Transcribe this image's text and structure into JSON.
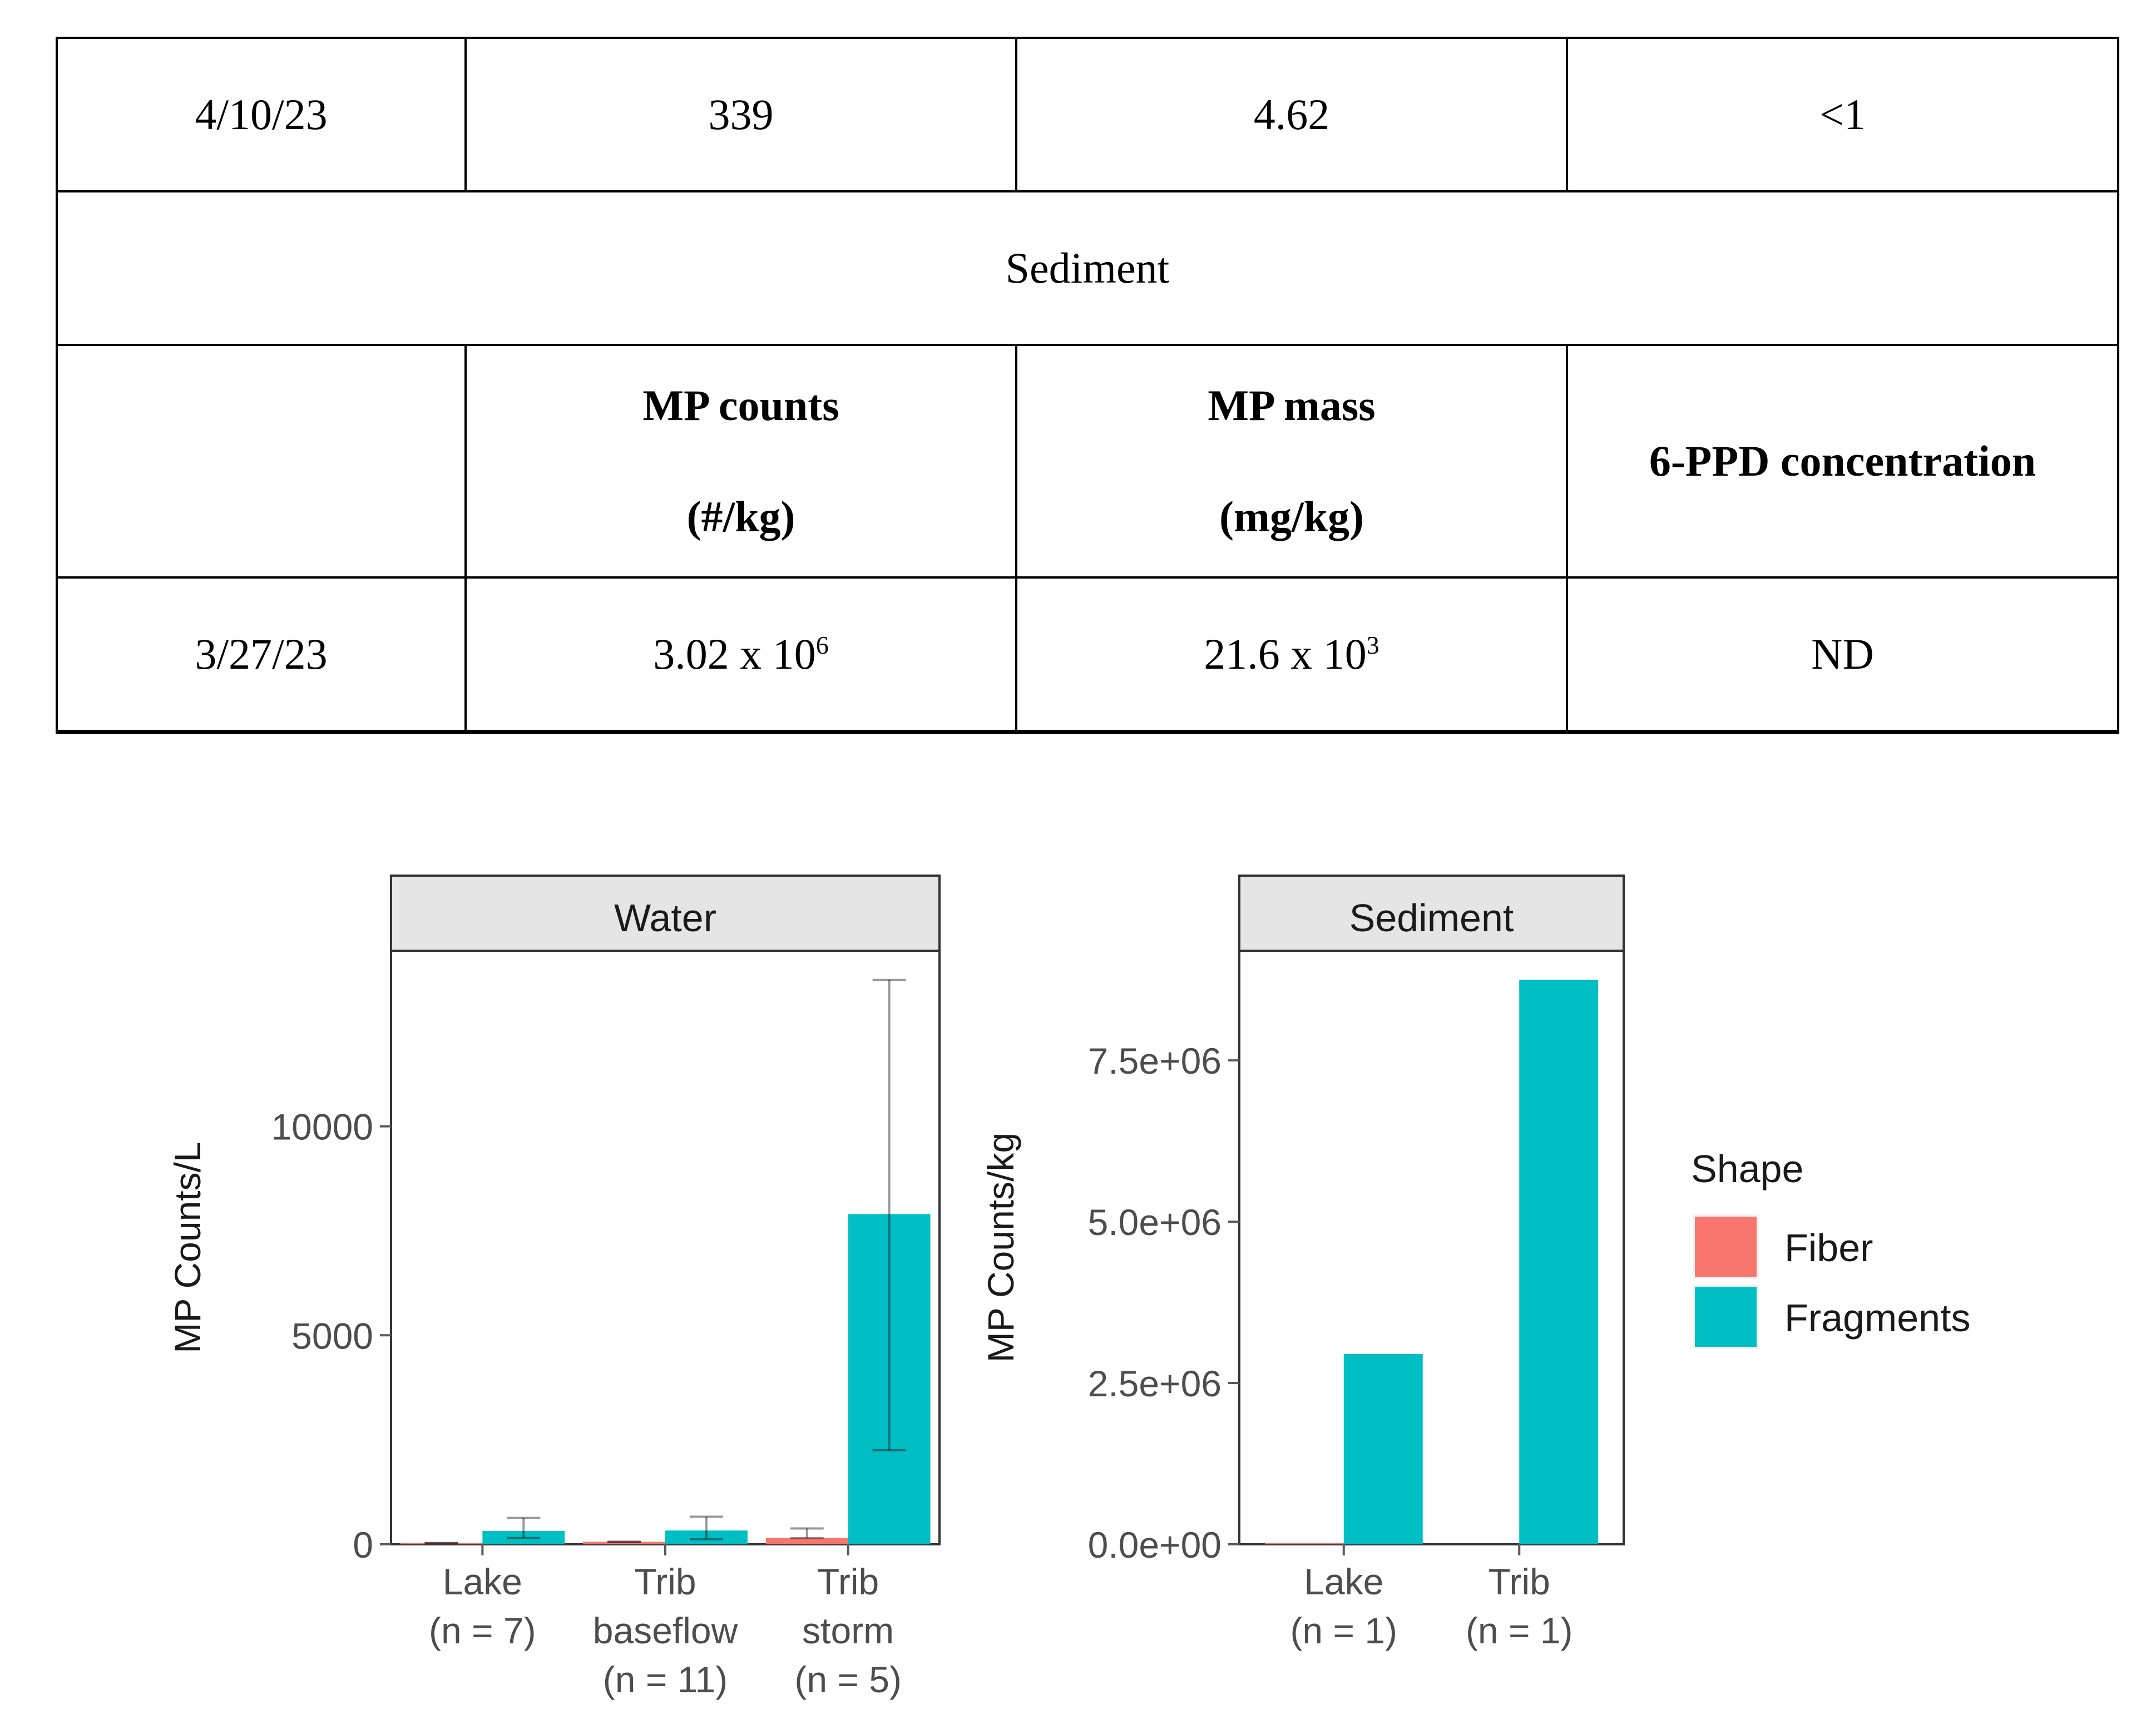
{
  "table": {
    "row_water_last": [
      "4/10/23",
      "339",
      "4.62",
      "<1"
    ],
    "section_label": "Sediment",
    "header": {
      "blank": "",
      "mp_counts_l1": "MP counts",
      "mp_counts_l2": "(#/kg)",
      "mp_mass_l1": "MP mass",
      "mp_mass_l2": "(mg/kg)",
      "ppd": "6-PPD concentration"
    },
    "row_sediment": {
      "date": "3/27/23",
      "counts_base": "3.02 x 10",
      "counts_exp": "6",
      "mass_base": "21.6 x 10",
      "mass_exp": "3",
      "ppd": "ND"
    }
  },
  "chart_data": [
    {
      "type": "bar",
      "title": "Water",
      "ylabel": "MP Counts/L",
      "ylim": [
        0,
        14200
      ],
      "yticks": [
        0,
        5000,
        10000
      ],
      "ytick_labels": [
        "0",
        "5000",
        "10000"
      ],
      "categories": [
        [
          "Lake",
          "(n = 7)"
        ],
        [
          "Trib",
          "baseflow",
          "(n = 11)"
        ],
        [
          "Trib",
          "storm",
          "(n = 5)"
        ]
      ],
      "series": [
        {
          "name": "Fiber",
          "color": "#F8766D",
          "values": [
            30,
            60,
            150
          ],
          "err_low": [
            30,
            60,
            150
          ],
          "err_high": [
            30,
            60,
            380
          ]
        },
        {
          "name": "Fragments",
          "color": "#00BFC4",
          "values": [
            320,
            330,
            7900
          ],
          "err_low": [
            150,
            120,
            2250
          ],
          "err_high": [
            630,
            660,
            13500
          ]
        }
      ]
    },
    {
      "type": "bar",
      "title": "Sediment",
      "ylabel": "MP Counts/kg",
      "ylim": [
        0,
        9200000
      ],
      "yticks": [
        0,
        2500000,
        5000000,
        7500000
      ],
      "ytick_labels": [
        "0.0e+00",
        "2.5e+06",
        "5.0e+06",
        "7.5e+06"
      ],
      "categories": [
        [
          "Lake",
          "(n = 1)"
        ],
        [
          "Trib",
          "(n = 1)"
        ]
      ],
      "series": [
        {
          "name": "Fiber",
          "color": "#F8766D",
          "values": [
            20000,
            0
          ]
        },
        {
          "name": "Fragments",
          "color": "#00BFC4",
          "values": [
            2950000,
            8750000
          ]
        }
      ]
    }
  ],
  "legend": {
    "title": "Shape",
    "items": [
      {
        "label": "Fiber",
        "color": "#F8766D"
      },
      {
        "label": "Fragments",
        "color": "#00BFC4"
      }
    ]
  }
}
